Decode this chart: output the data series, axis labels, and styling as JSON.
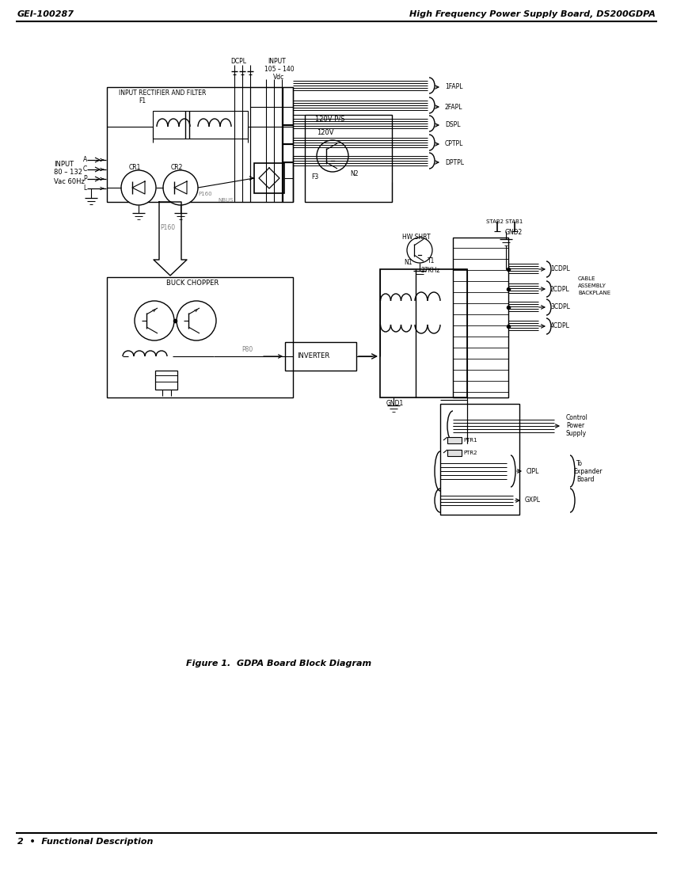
{
  "title_left": "GEI-100287",
  "title_right": "High Frequency Power Supply Board, DS200GDPA",
  "footer_left": "2  •  Functional Description",
  "figure_caption": "Figure 1.  GDPA Board Block Diagram",
  "bg_color": "#ffffff",
  "line_color": "#000000"
}
